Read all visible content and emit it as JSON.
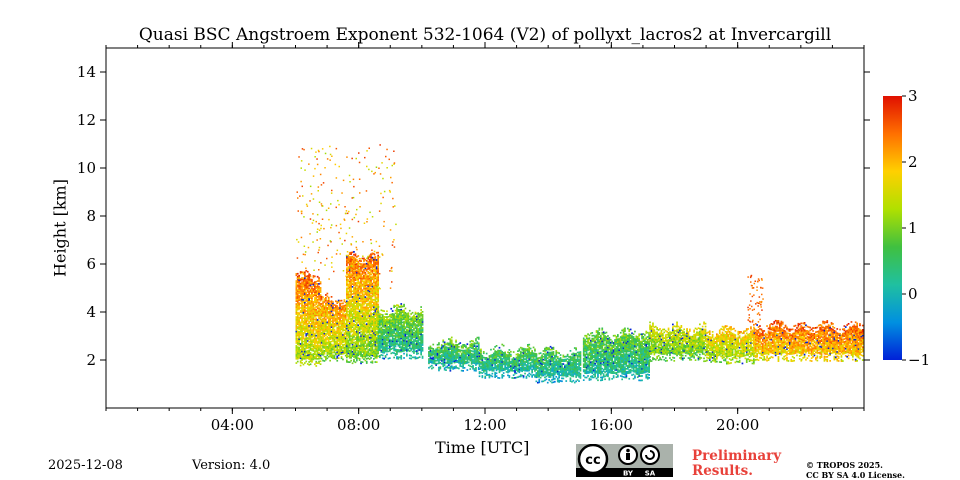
{
  "chart_data": {
    "type": "heatmap",
    "title": "Quasi BSC Angstroem Exponent 532-1064 (V2) of pollyxt_lacros2 at Invercargill",
    "xlabel": "Time [UTC]",
    "ylabel": "Height [km]",
    "xlim_hours": [
      0,
      24
    ],
    "ylim_km": [
      0,
      15
    ],
    "x_ticks": [
      {
        "value": 4,
        "label": "04:00"
      },
      {
        "value": 8,
        "label": "08:00"
      },
      {
        "value": 12,
        "label": "12:00"
      },
      {
        "value": 16,
        "label": "16:00"
      },
      {
        "value": 20,
        "label": "20:00"
      }
    ],
    "y_ticks": [
      {
        "value": 2,
        "label": "2"
      },
      {
        "value": 4,
        "label": "4"
      },
      {
        "value": 6,
        "label": "6"
      },
      {
        "value": 8,
        "label": "8"
      },
      {
        "value": 10,
        "label": "10"
      },
      {
        "value": 12,
        "label": "12"
      },
      {
        "value": 14,
        "label": "14"
      }
    ],
    "colorbar": {
      "min": -1,
      "max": 3,
      "ticks": [
        {
          "value": 3,
          "label": "3"
        },
        {
          "value": 2,
          "label": "2"
        },
        {
          "value": 1,
          "label": "1"
        },
        {
          "value": 0,
          "label": "0"
        },
        {
          "value": -1,
          "label": "−1"
        }
      ],
      "colors": [
        "#0020d8",
        "#0090e0",
        "#20c0a0",
        "#40c040",
        "#b0e000",
        "#ffd000",
        "#ff7000",
        "#e01000"
      ]
    },
    "data_regions": [
      {
        "t_start": 6.0,
        "t_end": 6.8,
        "h_bottom": 1.8,
        "h_top": 5.6,
        "value_low": 0.5,
        "value_high": 2.5
      },
      {
        "t_start": 6.8,
        "t_end": 7.6,
        "h_bottom": 2.0,
        "h_top": 4.6,
        "value_low": 0.3,
        "value_high": 2.4
      },
      {
        "t_start": 7.6,
        "t_end": 8.6,
        "h_bottom": 1.9,
        "h_top": 6.4,
        "value_low": 0.0,
        "value_high": 2.5
      },
      {
        "t_start": 8.6,
        "t_end": 10.0,
        "h_bottom": 2.1,
        "h_top": 4.2,
        "value_low": -0.5,
        "value_high": 1.2
      },
      {
        "t_start": 10.2,
        "t_end": 11.8,
        "h_bottom": 1.6,
        "h_top": 2.8,
        "value_low": -0.6,
        "value_high": 0.9
      },
      {
        "t_start": 11.8,
        "t_end": 13.6,
        "h_bottom": 1.3,
        "h_top": 2.5,
        "value_low": -0.6,
        "value_high": 0.9
      },
      {
        "t_start": 13.6,
        "t_end": 15.0,
        "h_bottom": 1.1,
        "h_top": 2.4,
        "value_low": -0.6,
        "value_high": 0.8
      },
      {
        "t_start": 15.1,
        "t_end": 17.2,
        "h_bottom": 1.2,
        "h_top": 3.2,
        "value_low": -0.5,
        "value_high": 1.0
      },
      {
        "t_start": 17.2,
        "t_end": 19.0,
        "h_bottom": 2.0,
        "h_top": 3.4,
        "value_low": 0.3,
        "value_high": 1.6
      },
      {
        "t_start": 19.0,
        "t_end": 20.5,
        "h_bottom": 1.9,
        "h_top": 3.3,
        "value_low": 0.6,
        "value_high": 2.0
      },
      {
        "t_start": 20.5,
        "t_end": 22.0,
        "h_bottom": 2.0,
        "h_top": 3.5,
        "value_low": 1.0,
        "value_high": 2.6
      },
      {
        "t_start": 22.0,
        "t_end": 24.0,
        "h_bottom": 2.0,
        "h_top": 3.5,
        "value_low": 1.2,
        "value_high": 2.6
      }
    ]
  },
  "footer": {
    "date": "2025-12-08",
    "version": "Version: 4.0",
    "preliminary_line1": "Preliminary",
    "preliminary_line2": "Results.",
    "copyright_line1": "© TROPOS 2025.",
    "copyright_line2": "CC BY SA 4.0 License.",
    "license_badge": {
      "cc": "cc",
      "by": "BY",
      "sa": "SA"
    }
  }
}
